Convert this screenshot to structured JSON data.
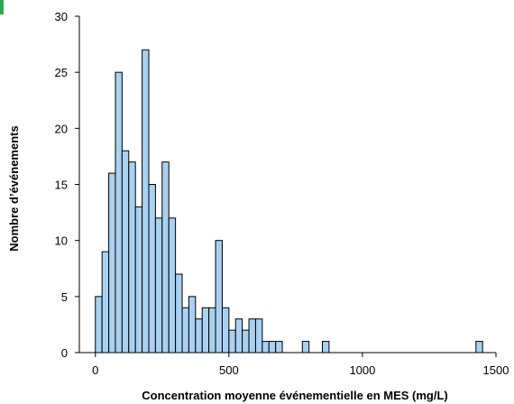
{
  "chart_data": {
    "type": "bar",
    "xlabel": "Concentration moyenne événementielle en MES (mg/L)",
    "ylabel": "Nombre d’événements",
    "xlim": [
      -60,
      1500
    ],
    "ylim": [
      0,
      30
    ],
    "bin_width": 25,
    "x_ticks": [
      0,
      500,
      1000,
      1500
    ],
    "y_ticks": [
      0,
      5,
      10,
      15,
      20,
      25,
      30
    ],
    "grid": false,
    "bar_color": "#a9d1f1",
    "accent_color": "#2fa84f",
    "bins": [
      {
        "x": 0,
        "value": 5
      },
      {
        "x": 25,
        "value": 9
      },
      {
        "x": 50,
        "value": 16
      },
      {
        "x": 75,
        "value": 25
      },
      {
        "x": 100,
        "value": 18
      },
      {
        "x": 125,
        "value": 17
      },
      {
        "x": 150,
        "value": 13
      },
      {
        "x": 175,
        "value": 27
      },
      {
        "x": 200,
        "value": 15
      },
      {
        "x": 225,
        "value": 12
      },
      {
        "x": 250,
        "value": 17
      },
      {
        "x": 275,
        "value": 12
      },
      {
        "x": 300,
        "value": 7
      },
      {
        "x": 325,
        "value": 4
      },
      {
        "x": 350,
        "value": 5
      },
      {
        "x": 375,
        "value": 3
      },
      {
        "x": 400,
        "value": 4
      },
      {
        "x": 425,
        "value": 4
      },
      {
        "x": 450,
        "value": 10
      },
      {
        "x": 475,
        "value": 4
      },
      {
        "x": 500,
        "value": 2
      },
      {
        "x": 525,
        "value": 3
      },
      {
        "x": 550,
        "value": 2
      },
      {
        "x": 575,
        "value": 3
      },
      {
        "x": 600,
        "value": 3
      },
      {
        "x": 625,
        "value": 1
      },
      {
        "x": 650,
        "value": 1
      },
      {
        "x": 675,
        "value": 1
      },
      {
        "x": 775,
        "value": 1
      },
      {
        "x": 850,
        "value": 1
      },
      {
        "x": 1425,
        "value": 1
      }
    ]
  }
}
